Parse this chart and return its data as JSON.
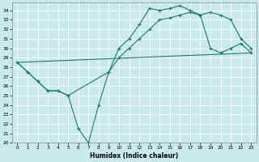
{
  "xlabel": "Humidex (Indice chaleur)",
  "bg_color": "#caeaea",
  "grid_color": "#ffffff",
  "line_color": "#1a7a6e",
  "xlim": [
    -0.5,
    23.5
  ],
  "ylim": [
    20,
    34.8
  ],
  "yticks": [
    20,
    21,
    22,
    23,
    24,
    25,
    26,
    27,
    28,
    29,
    30,
    31,
    32,
    33,
    34
  ],
  "xticks": [
    0,
    1,
    2,
    3,
    4,
    5,
    6,
    7,
    8,
    9,
    10,
    11,
    12,
    13,
    14,
    15,
    16,
    17,
    18,
    19,
    20,
    21,
    22,
    23
  ],
  "line1_x": [
    0,
    1,
    2,
    3,
    4,
    5,
    6,
    7,
    8,
    9,
    10,
    11,
    12,
    13,
    14,
    15,
    16,
    17,
    18,
    19,
    20,
    21,
    22,
    23
  ],
  "line1_y": [
    28.5,
    27.5,
    26.5,
    25.5,
    25.5,
    25.0,
    21.5,
    20.0,
    24.0,
    27.5,
    30.0,
    31.0,
    32.5,
    34.2,
    34.0,
    34.2,
    34.5,
    34.0,
    33.5,
    30.0,
    29.5,
    30.0,
    30.5,
    29.5
  ],
  "line2_x": [
    0,
    23
  ],
  "line2_y": [
    28.5,
    29.5
  ],
  "line3_x": [
    0,
    1,
    2,
    3,
    4,
    5,
    9,
    10,
    11,
    12,
    13,
    14,
    15,
    16,
    17,
    18,
    19,
    20,
    21,
    22,
    23
  ],
  "line3_y": [
    28.5,
    27.5,
    26.5,
    25.5,
    25.5,
    25.0,
    27.5,
    29.0,
    30.0,
    31.0,
    32.0,
    33.0,
    33.2,
    33.5,
    33.8,
    33.5,
    33.8,
    33.5,
    33.0,
    31.0,
    30.0
  ]
}
